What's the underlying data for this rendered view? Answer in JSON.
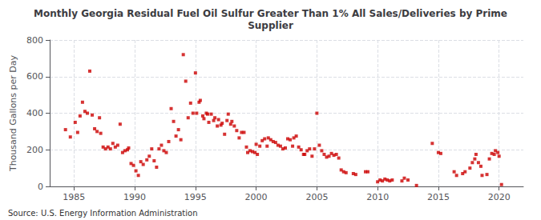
{
  "chart_data": {
    "type": "scatter",
    "title": "Monthly Georgia Residual Fuel Oil Sulfur Greater Than 1% All Sales/Deliveries by Prime\nSupplier",
    "ylabel": "Thousand Gallons per Day",
    "annotations": [
      "Source: U.S. Energy Information Administration"
    ],
    "color": "#cc0000",
    "marker": "square",
    "grid": true,
    "xlim": [
      1983,
      2022
    ],
    "ylim": [
      0,
      800
    ],
    "xticks": [
      1985,
      1990,
      1995,
      2000,
      2005,
      2010,
      2015,
      2020
    ],
    "yticks": [
      0,
      200,
      400,
      600,
      800
    ],
    "x": [
      1984.3,
      1984.7,
      1985.1,
      1985.3,
      1985.5,
      1985.7,
      1985.9,
      1986.1,
      1986.3,
      1986.5,
      1986.7,
      1986.9,
      1987.1,
      1987.2,
      1987.4,
      1987.6,
      1987.8,
      1988.0,
      1988.2,
      1988.4,
      1988.6,
      1988.8,
      1989.0,
      1989.2,
      1989.4,
      1989.5,
      1989.7,
      1989.9,
      1990.1,
      1990.3,
      1990.5,
      1990.7,
      1991.0,
      1991.2,
      1991.4,
      1991.6,
      1991.8,
      1992.0,
      1992.2,
      1992.4,
      1992.6,
      1992.8,
      1993.0,
      1993.2,
      1993.4,
      1993.6,
      1993.8,
      1994.0,
      1994.2,
      1994.4,
      1994.6,
      1994.8,
      1995.0,
      1995.1,
      1995.3,
      1995.4,
      1995.6,
      1995.7,
      1995.9,
      1996.0,
      1996.1,
      1996.3,
      1996.5,
      1996.6,
      1996.8,
      1996.9,
      1997.1,
      1997.2,
      1997.4,
      1997.6,
      1997.7,
      1997.9,
      1998.0,
      1998.2,
      1998.4,
      1998.6,
      1998.8,
      1999.0,
      1999.2,
      1999.3,
      1999.5,
      1999.7,
      1999.9,
      2000.0,
      2000.1,
      2000.3,
      2000.5,
      2000.7,
      2000.9,
      2001.0,
      2001.2,
      2001.4,
      2001.6,
      2001.8,
      2002.0,
      2002.2,
      2002.4,
      2002.6,
      2002.8,
      2003.0,
      2003.1,
      2003.3,
      2003.5,
      2003.7,
      2003.9,
      2004.0,
      2004.2,
      2004.4,
      2004.6,
      2004.8,
      2005.0,
      2005.2,
      2005.4,
      2005.6,
      2005.8,
      2006.0,
      2006.2,
      2006.4,
      2006.6,
      2006.8,
      2007.0,
      2007.2,
      2007.4,
      2008.0,
      2008.2,
      2009.0,
      2009.2,
      2010.0,
      2010.2,
      2010.4,
      2010.6,
      2010.8,
      2011.0,
      2011.2,
      2012.0,
      2012.2,
      2012.5,
      2013.2,
      2014.5,
      2015.0,
      2015.2,
      2016.3,
      2016.5,
      2017.0,
      2017.2,
      2017.6,
      2017.8,
      2018.0,
      2018.1,
      2018.3,
      2018.5,
      2018.6,
      2019.0,
      2019.2,
      2019.4,
      2019.6,
      2019.7,
      2019.9,
      2020.0,
      2020.2
    ],
    "values": [
      310,
      270,
      350,
      295,
      385,
      460,
      410,
      400,
      630,
      390,
      315,
      300,
      375,
      290,
      215,
      205,
      215,
      205,
      235,
      215,
      225,
      340,
      185,
      195,
      200,
      210,
      125,
      115,
      85,
      60,
      135,
      120,
      145,
      165,
      205,
      140,
      105,
      205,
      225,
      195,
      185,
      245,
      425,
      355,
      275,
      310,
      255,
      720,
      575,
      375,
      455,
      400,
      620,
      400,
      460,
      470,
      385,
      370,
      400,
      395,
      350,
      395,
      360,
      375,
      330,
      365,
      335,
      345,
      285,
      360,
      395,
      340,
      355,
      330,
      305,
      265,
      295,
      295,
      215,
      185,
      195,
      190,
      185,
      230,
      175,
      220,
      250,
      260,
      220,
      265,
      255,
      245,
      240,
      225,
      220,
      205,
      210,
      260,
      255,
      220,
      265,
      275,
      215,
      200,
      175,
      175,
      195,
      205,
      165,
      205,
      400,
      225,
      195,
      175,
      160,
      165,
      180,
      170,
      175,
      155,
      90,
      80,
      75,
      70,
      65,
      80,
      80,
      25,
      35,
      30,
      40,
      35,
      30,
      35,
      30,
      45,
      35,
      5,
      235,
      185,
      180,
      80,
      60,
      70,
      80,
      100,
      130,
      150,
      175,
      130,
      110,
      60,
      65,
      150,
      180,
      175,
      195,
      185,
      165,
      10
    ]
  }
}
